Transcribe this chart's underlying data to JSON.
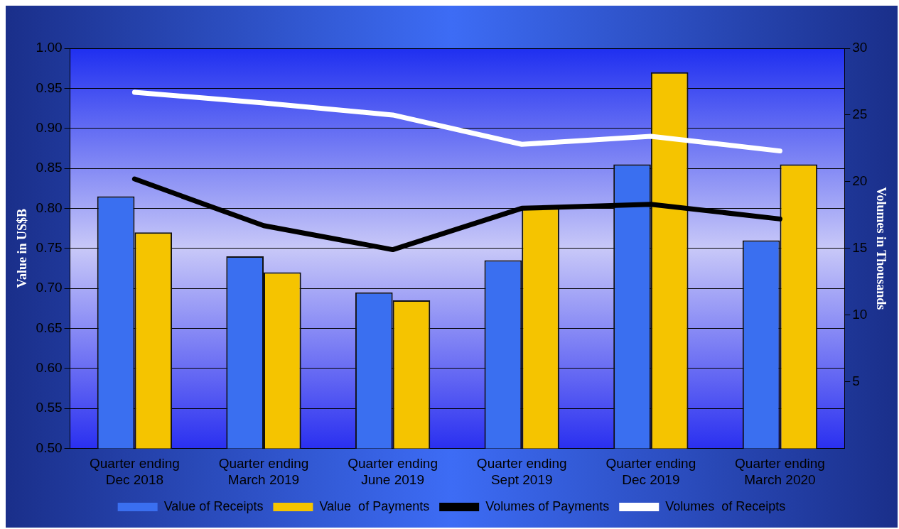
{
  "chart_data": {
    "type": "bar",
    "categories": [
      "Quarter ending Dec 2018",
      "Quarter ending March 2019",
      "Quarter ending June 2019",
      "Quarter ending Sept 2019",
      "Quarter ending Dec 2019",
      "Quarter ending March 2020"
    ],
    "series": [
      {
        "name": "Value of Receipts",
        "color": "#3a6ff0",
        "values": [
          0.815,
          0.74,
          0.695,
          0.735,
          0.855,
          0.76
        ]
      },
      {
        "name": "Value  of Payments",
        "color": "#f5c400",
        "values": [
          0.77,
          0.72,
          0.685,
          0.8,
          0.97,
          0.855
        ]
      },
      {
        "name": "Volumes of Payments",
        "type": "line",
        "axis": "y2",
        "color": "#000000",
        "values": [
          20.2,
          16.7,
          14.9,
          18.0,
          18.3,
          17.2
        ]
      },
      {
        "name": "Volumes  of Receipts",
        "type": "line",
        "axis": "y2",
        "color": "#ffffff",
        "values": [
          26.7,
          25.9,
          25.0,
          22.8,
          23.4,
          22.3
        ]
      }
    ],
    "ylabel": "Value in US$B",
    "y2label": "Volumes in Thousands",
    "ylim": [
      0.5,
      1.0
    ],
    "yticks": [
      {
        "value": 0.5,
        "label": "0.50"
      },
      {
        "value": 0.55,
        "label": "0.55"
      },
      {
        "value": 0.6,
        "label": "0.60"
      },
      {
        "value": 0.65,
        "label": "0.65"
      },
      {
        "value": 0.7,
        "label": "0.70"
      },
      {
        "value": 0.75,
        "label": "0.75"
      },
      {
        "value": 0.8,
        "label": "0.80"
      },
      {
        "value": 0.85,
        "label": "0.85"
      },
      {
        "value": 0.9,
        "label": "0.90"
      },
      {
        "value": 0.95,
        "label": "0.95"
      },
      {
        "value": 1.0,
        "label": "1.00"
      }
    ],
    "y2lim": [
      0,
      30
    ],
    "y2ticks": [
      5,
      10,
      15,
      20,
      25,
      30
    ],
    "grid": "y",
    "legend": "bottom",
    "marker": "none",
    "line_style": "solid"
  }
}
